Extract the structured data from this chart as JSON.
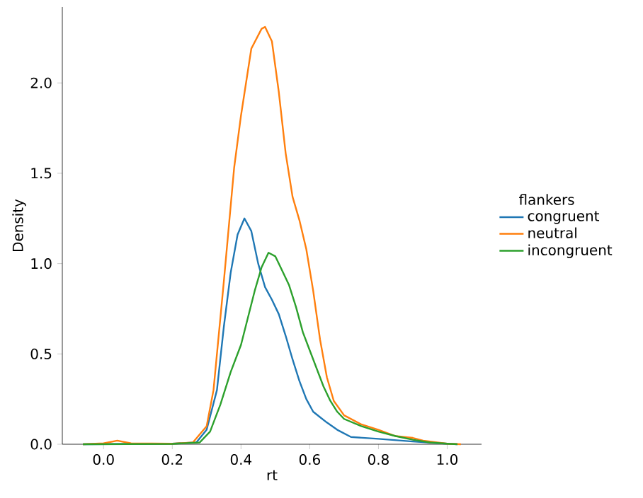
{
  "chart_data": {
    "type": "line",
    "xlabel": "rt",
    "ylabel": "Density",
    "legend_title": "flankers",
    "legend": "right",
    "grid": false,
    "xlim": [
      -0.12,
      1.1
    ],
    "ylim": [
      0,
      2.42
    ],
    "xticks": [
      {
        "value": 0,
        "label": "0.0"
      },
      {
        "value": 0.2,
        "label": "0.2"
      },
      {
        "value": 0.4,
        "label": "0.4"
      },
      {
        "value": 0.6,
        "label": "0.6"
      },
      {
        "value": 0.8,
        "label": "0.8"
      },
      {
        "value": 1.0,
        "label": "1.0"
      }
    ],
    "yticks": [
      {
        "value": 0,
        "label": "0.0"
      },
      {
        "value": 0.5,
        "label": "0.5"
      },
      {
        "value": 1.0,
        "label": "1.0"
      },
      {
        "value": 1.5,
        "label": "1.5"
      },
      {
        "value": 2.0,
        "label": "2.0"
      }
    ],
    "series": [
      {
        "name": "congruent",
        "color": "#1f77b4",
        "x": [
          -0.06,
          0.2,
          0.27,
          0.3,
          0.33,
          0.35,
          0.37,
          0.39,
          0.41,
          0.43,
          0.45,
          0.47,
          0.49,
          0.51,
          0.53,
          0.55,
          0.57,
          0.59,
          0.61,
          0.63,
          0.65,
          0.68,
          0.72,
          0.8,
          0.9,
          1.0,
          1.03
        ],
        "values": [
          0,
          0.003,
          0.01,
          0.08,
          0.3,
          0.65,
          0.95,
          1.16,
          1.25,
          1.18,
          1.0,
          0.87,
          0.8,
          0.72,
          0.6,
          0.47,
          0.35,
          0.25,
          0.18,
          0.15,
          0.12,
          0.08,
          0.04,
          0.03,
          0.015,
          0.003,
          0
        ]
      },
      {
        "name": "neutral",
        "color": "#ff7f0e",
        "x": [
          -0.06,
          0.0,
          0.04,
          0.08,
          0.2,
          0.26,
          0.3,
          0.32,
          0.35,
          0.38,
          0.4,
          0.43,
          0.46,
          0.47,
          0.49,
          0.51,
          0.53,
          0.55,
          0.57,
          0.59,
          0.61,
          0.63,
          0.65,
          0.67,
          0.7,
          0.75,
          0.8,
          0.85,
          0.9,
          0.93,
          1.0,
          1.04
        ],
        "values": [
          0,
          0.005,
          0.02,
          0.005,
          0.003,
          0.01,
          0.1,
          0.3,
          0.9,
          1.53,
          1.82,
          2.19,
          2.3,
          2.31,
          2.23,
          1.95,
          1.61,
          1.37,
          1.24,
          1.08,
          0.85,
          0.58,
          0.37,
          0.24,
          0.16,
          0.11,
          0.08,
          0.045,
          0.035,
          0.02,
          0.003,
          0
        ]
      },
      {
        "name": "incongruent",
        "color": "#2ca02c",
        "x": [
          -0.06,
          0.2,
          0.28,
          0.31,
          0.34,
          0.37,
          0.4,
          0.42,
          0.44,
          0.46,
          0.48,
          0.5,
          0.52,
          0.54,
          0.56,
          0.58,
          0.6,
          0.62,
          0.64,
          0.66,
          0.68,
          0.7,
          0.75,
          0.8,
          0.85,
          0.9,
          0.95,
          1.0,
          1.03
        ],
        "values": [
          0,
          0.002,
          0.01,
          0.07,
          0.22,
          0.4,
          0.55,
          0.7,
          0.85,
          0.98,
          1.06,
          1.04,
          0.96,
          0.88,
          0.76,
          0.62,
          0.52,
          0.42,
          0.32,
          0.24,
          0.18,
          0.14,
          0.1,
          0.07,
          0.045,
          0.025,
          0.01,
          0.003,
          0
        ]
      }
    ]
  }
}
